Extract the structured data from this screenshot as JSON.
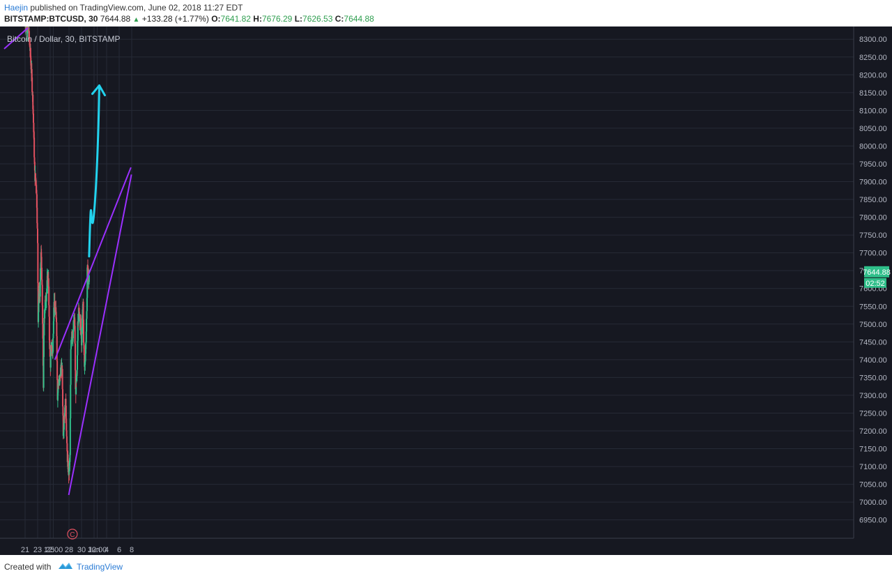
{
  "header": {
    "author": "Haejin",
    "published_text": "published on TradingView.com, June 02, 2018 11:27 EDT",
    "symbol": "BITSTAMP:BTCUSD, 30",
    "last": "7644.88",
    "change": "+133.28 (+1.77%)",
    "o_label": "O:",
    "o": "7641.82",
    "h_label": "H:",
    "h": "7676.29",
    "l_label": "L:",
    "l": "7626.53",
    "c_label": "C:",
    "c": "7644.88"
  },
  "footer": {
    "created_with": "Created with",
    "brand": "TradingView"
  },
  "colors": {
    "background": "#161821",
    "grid": "#262a36",
    "up_candle": "#2fbf8a",
    "down_candle": "#e0505f",
    "trendline": "#9b30ff",
    "projection": "#22d3ee",
    "price_tag": "#2fbf8a",
    "event_marker": "#e0505f"
  },
  "chart_data": {
    "type": "candlestick",
    "title": "Bitcoin / Dollar, 30, BITSTAMP",
    "symbol": "BTCUSD",
    "exchange": "BITSTAMP",
    "interval_minutes": 30,
    "ylim": [
      6920,
      8320
    ],
    "y_ticks": [
      6950,
      7000,
      7050,
      7100,
      7150,
      7200,
      7250,
      7300,
      7350,
      7400,
      7450,
      7500,
      7550,
      7600,
      7650,
      7700,
      7750,
      7800,
      7850,
      7900,
      7950,
      8000,
      8050,
      8100,
      8150,
      8200,
      8250,
      8300
    ],
    "y_tick_format": "fixed2",
    "x_ticks": [
      {
        "label": "21",
        "t": 0
      },
      {
        "label": "23",
        "t": 96
      },
      {
        "label": "25",
        "t": 192
      },
      {
        "label": "12:00",
        "t": 216
      },
      {
        "label": "28",
        "t": 336
      },
      {
        "label": "30",
        "t": 432
      },
      {
        "label": "Jun",
        "t": 528
      },
      {
        "label": "12:00",
        "t": 552
      },
      {
        "label": "4",
        "t": 624
      },
      {
        "label": "6",
        "t": 720
      },
      {
        "label": "8",
        "t": 816
      }
    ],
    "last_price": "7644.88",
    "countdown": "02:52",
    "event_marker": {
      "label": "C",
      "t": 362
    },
    "price_path": [
      {
        "t": 0,
        "p": 8350
      },
      {
        "t": 28,
        "p": 8320
      },
      {
        "t": 40,
        "p": 8260
      },
      {
        "t": 50,
        "p": 8200
      },
      {
        "t": 60,
        "p": 8120
      },
      {
        "t": 66,
        "p": 8040
      },
      {
        "t": 74,
        "p": 7920
      },
      {
        "t": 84,
        "p": 7900
      },
      {
        "t": 90,
        "p": 7840
      },
      {
        "t": 96,
        "p": 7720
      },
      {
        "t": 100,
        "p": 7520
      },
      {
        "t": 108,
        "p": 7600
      },
      {
        "t": 114,
        "p": 7580
      },
      {
        "t": 122,
        "p": 7700
      },
      {
        "t": 128,
        "p": 7640
      },
      {
        "t": 134,
        "p": 7500
      },
      {
        "t": 140,
        "p": 7330
      },
      {
        "t": 146,
        "p": 7520
      },
      {
        "t": 154,
        "p": 7560
      },
      {
        "t": 162,
        "p": 7580
      },
      {
        "t": 170,
        "p": 7620
      },
      {
        "t": 178,
        "p": 7640
      },
      {
        "t": 186,
        "p": 7460
      },
      {
        "t": 194,
        "p": 7390
      },
      {
        "t": 202,
        "p": 7440
      },
      {
        "t": 212,
        "p": 7420
      },
      {
        "t": 220,
        "p": 7560
      },
      {
        "t": 230,
        "p": 7540
      },
      {
        "t": 240,
        "p": 7520
      },
      {
        "t": 248,
        "p": 7300
      },
      {
        "t": 256,
        "p": 7340
      },
      {
        "t": 264,
        "p": 7330
      },
      {
        "t": 274,
        "p": 7380
      },
      {
        "t": 284,
        "p": 7360
      },
      {
        "t": 292,
        "p": 7200
      },
      {
        "t": 300,
        "p": 7240
      },
      {
        "t": 312,
        "p": 7280
      },
      {
        "t": 320,
        "p": 7150
      },
      {
        "t": 328,
        "p": 7100
      },
      {
        "t": 336,
        "p": 7080
      },
      {
        "t": 344,
        "p": 7130
      },
      {
        "t": 350,
        "p": 7420
      },
      {
        "t": 358,
        "p": 7490
      },
      {
        "t": 366,
        "p": 7460
      },
      {
        "t": 374,
        "p": 7510
      },
      {
        "t": 380,
        "p": 7500
      },
      {
        "t": 386,
        "p": 7310
      },
      {
        "t": 392,
        "p": 7330
      },
      {
        "t": 398,
        "p": 7360
      },
      {
        "t": 404,
        "p": 7520
      },
      {
        "t": 414,
        "p": 7540
      },
      {
        "t": 424,
        "p": 7500
      },
      {
        "t": 432,
        "p": 7440
      },
      {
        "t": 438,
        "p": 7510
      },
      {
        "t": 444,
        "p": 7560
      },
      {
        "t": 448,
        "p": 7460
      },
      {
        "t": 454,
        "p": 7380
      },
      {
        "t": 462,
        "p": 7420
      },
      {
        "t": 468,
        "p": 7480
      },
      {
        "t": 472,
        "p": 7520
      },
      {
        "t": 476,
        "p": 7660
      },
      {
        "t": 482,
        "p": 7650
      },
      {
        "t": 486,
        "p": 7610
      },
      {
        "t": 490,
        "p": 7645
      }
    ],
    "trendlines": [
      {
        "name": "wedge-upper",
        "from": {
          "t": 228,
          "p": 7400
        },
        "to": {
          "t": 810,
          "p": 7940
        }
      },
      {
        "name": "wedge-lower",
        "from": {
          "t": 334,
          "p": 7020
        },
        "to": {
          "t": 814,
          "p": 7920
        }
      }
    ],
    "projection": {
      "points": [
        {
          "t": 490,
          "p": 7690
        },
        {
          "t": 498,
          "p": 7790
        },
        {
          "t": 504,
          "p": 7830
        },
        {
          "t": 510,
          "p": 7790
        },
        {
          "t": 518,
          "p": 7780
        },
        {
          "t": 528,
          "p": 7810
        },
        {
          "t": 540,
          "p": 7870
        },
        {
          "t": 550,
          "p": 7940
        },
        {
          "t": 562,
          "p": 8060
        },
        {
          "t": 568,
          "p": 8170
        }
      ],
      "arrow": "up"
    }
  }
}
